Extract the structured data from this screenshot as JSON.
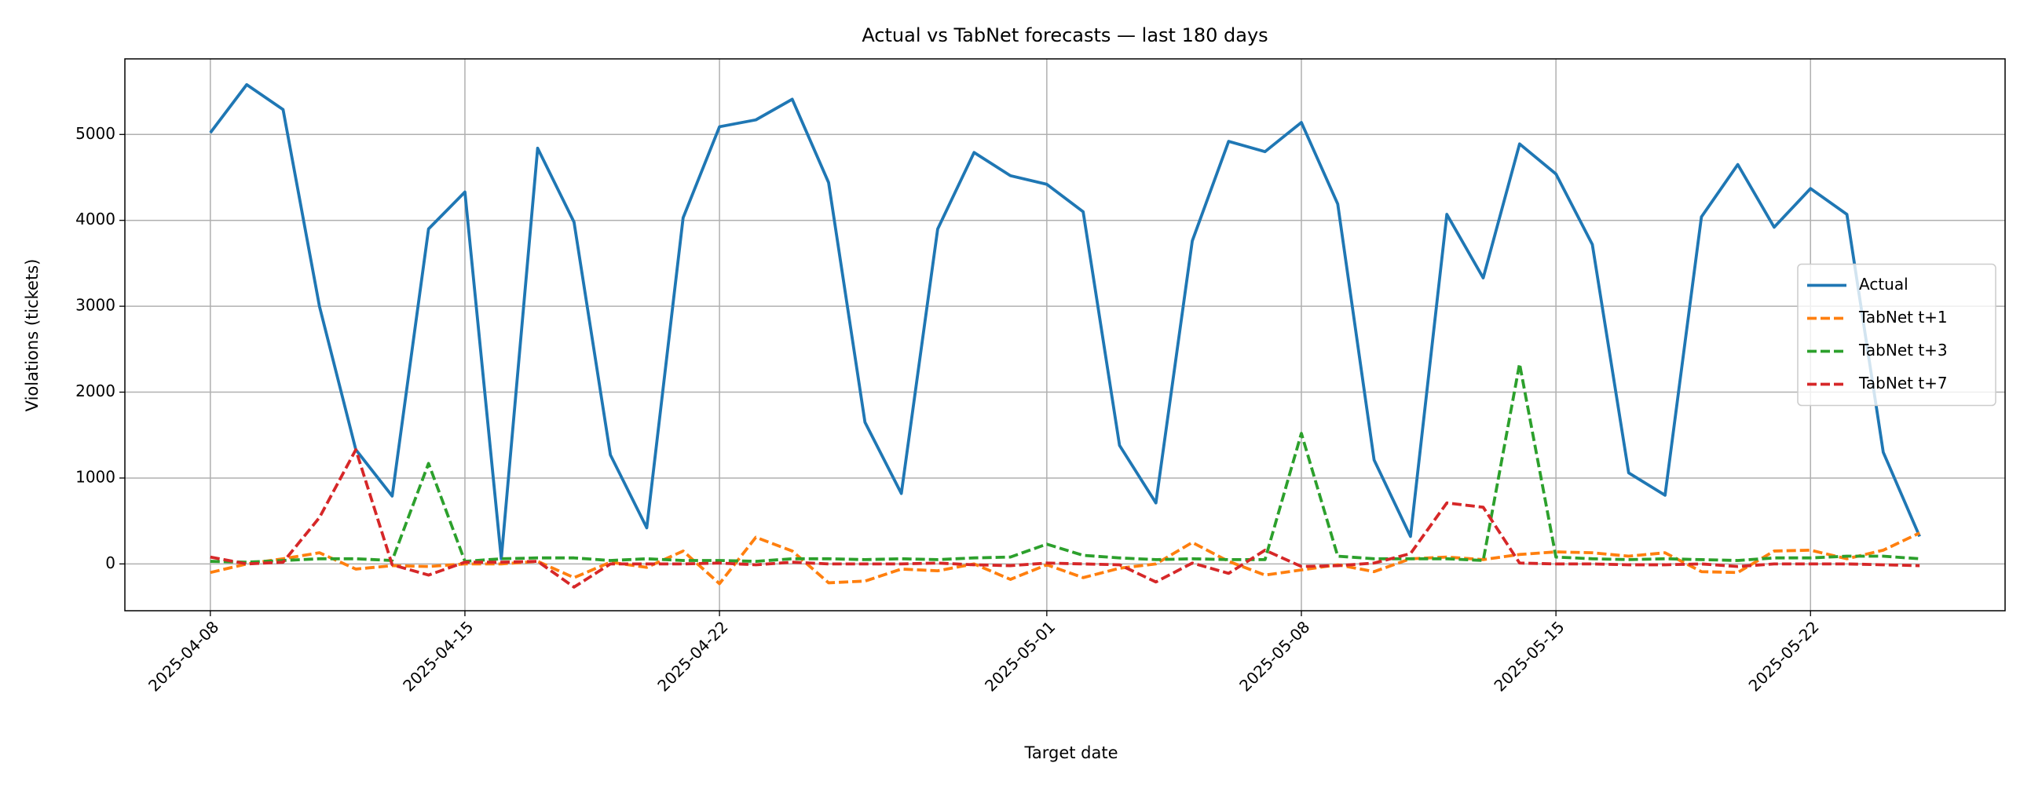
{
  "chart_data": {
    "type": "line",
    "title": "Actual vs TabNet forecasts — last 180 days",
    "xlabel": "Target date",
    "ylabel": "Violations (tickets)",
    "x": [
      "2025-04-08",
      "2025-04-09",
      "2025-04-10",
      "2025-04-11",
      "2025-04-12",
      "2025-04-13",
      "2025-04-14",
      "2025-04-15",
      "2025-04-16",
      "2025-04-17",
      "2025-04-18",
      "2025-04-19",
      "2025-04-20",
      "2025-04-21",
      "2025-04-22",
      "2025-04-23",
      "2025-04-24",
      "2025-04-25",
      "2025-04-26",
      "2025-04-27",
      "2025-04-28",
      "2025-04-29",
      "2025-04-30",
      "2025-05-01",
      "2025-05-02",
      "2025-05-03",
      "2025-05-04",
      "2025-05-05",
      "2025-05-06",
      "2025-05-07",
      "2025-05-08",
      "2025-05-09",
      "2025-05-10",
      "2025-05-11",
      "2025-05-12",
      "2025-05-13",
      "2025-05-14",
      "2025-05-15",
      "2025-05-16",
      "2025-05-17",
      "2025-05-18",
      "2025-05-19",
      "2025-05-20",
      "2025-05-21",
      "2025-05-22",
      "2025-05-23",
      "2025-05-24",
      "2025-05-25"
    ],
    "series": [
      {
        "name": "Actual",
        "color": "#1f77b4",
        "style": "solid",
        "values": [
          5020,
          5580,
          5290,
          3000,
          1330,
          790,
          3900,
          4330,
          60,
          4840,
          3980,
          1270,
          420,
          4030,
          5090,
          5170,
          5410,
          4440,
          1650,
          820,
          3900,
          4790,
          4520,
          4420,
          4100,
          1380,
          710,
          3760,
          4920,
          4800,
          5140,
          4190,
          1210,
          320,
          4070,
          3330,
          4890,
          4540,
          3720,
          1060,
          800,
          4040,
          4650,
          3920,
          4370,
          4070,
          1300,
          320
        ]
      },
      {
        "name": "TabNet t+1",
        "color": "#ff7f0e",
        "style": "dashed",
        "values": [
          -100,
          0,
          60,
          130,
          -60,
          -20,
          -30,
          0,
          0,
          30,
          -160,
          20,
          -40,
          150,
          -230,
          310,
          150,
          -220,
          -200,
          -60,
          -80,
          0,
          -180,
          -10,
          -160,
          -50,
          0,
          250,
          30,
          -130,
          -70,
          -10,
          -90,
          60,
          80,
          50,
          110,
          140,
          130,
          90,
          130,
          -90,
          -100,
          150,
          160,
          60,
          160,
          360
        ]
      },
      {
        "name": "TabNet t+3",
        "color": "#2ca02c",
        "style": "dashed",
        "values": [
          30,
          20,
          40,
          60,
          60,
          40,
          1170,
          30,
          60,
          70,
          70,
          40,
          60,
          40,
          40,
          30,
          60,
          60,
          50,
          60,
          50,
          70,
          80,
          230,
          100,
          70,
          50,
          60,
          50,
          50,
          1520,
          90,
          60,
          60,
          60,
          40,
          2330,
          80,
          60,
          50,
          60,
          50,
          40,
          70,
          70,
          90,
          90,
          60
        ]
      },
      {
        "name": "TabNet t+7",
        "color": "#d62728",
        "style": "dashed",
        "values": [
          80,
          0,
          20,
          540,
          1330,
          -10,
          -130,
          20,
          20,
          30,
          -270,
          0,
          0,
          0,
          10,
          -10,
          20,
          0,
          0,
          0,
          10,
          -10,
          -20,
          10,
          0,
          -10,
          -210,
          10,
          -110,
          160,
          -30,
          -20,
          10,
          120,
          710,
          660,
          10,
          0,
          0,
          -10,
          -10,
          0,
          -30,
          0,
          0,
          0,
          -10,
          -20
        ]
      }
    ],
    "xticks": [
      "2025-04-08",
      "2025-04-15",
      "2025-04-22",
      "2025-05-01",
      "2025-05-08",
      "2025-05-15",
      "2025-05-22"
    ],
    "ylim": [
      -545,
      5880
    ],
    "yticks": [
      0,
      1000,
      2000,
      3000,
      4000,
      5000
    ],
    "grid": true,
    "legend": "center right"
  }
}
